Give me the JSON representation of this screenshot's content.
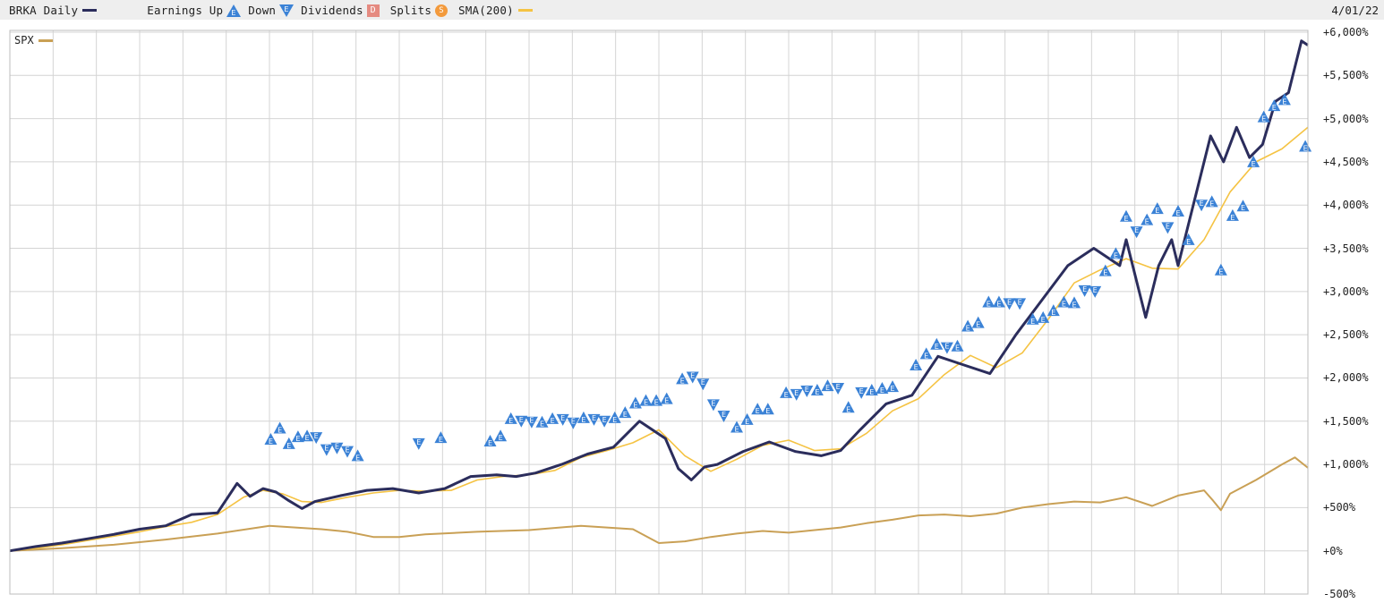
{
  "legend": {
    "symbol_label": "BRKA Daily",
    "earnings_up_label": "Earnings Up",
    "down_label": "Down",
    "dividends_label": "Dividends",
    "dividends_glyph": "D",
    "splits_label": "Splits",
    "splits_glyph": "S",
    "sma_label": "SMA(200)",
    "spx_label": "SPX"
  },
  "date_label": "4/01/22",
  "earnings_glyph": "E",
  "colors": {
    "brka": "#2b2d5c",
    "sma": "#f5c343",
    "spx": "#c9a055",
    "earnings": "#3b82d6",
    "grid": "#d4d4d4",
    "legend_bg": "#eeeeee"
  },
  "chart_data": {
    "type": "line",
    "title": "",
    "xlabel": "",
    "ylabel": "",
    "ylim": [
      -500,
      6000
    ],
    "y_ticks": [
      "+6,000%",
      "+5,500%",
      "+5,000%",
      "+4,500%",
      "+4,000%",
      "+3,500%",
      "+3,000%",
      "+2,500%",
      "+2,000%",
      "+1,500%",
      "+1,000%",
      "+500%",
      "+0%",
      "-500%"
    ],
    "x_ticks": [],
    "last_date": "4/01/22",
    "series": [
      {
        "name": "BRKA Daily",
        "x": [
          0,
          2,
          4,
          6,
          8,
          10,
          12,
          14,
          16,
          17.5,
          18.5,
          19.5,
          20.5,
          21.5,
          22.5,
          23.5,
          25.5,
          27.5,
          29.5,
          31.5,
          33.5,
          35.5,
          37.5,
          39,
          40.5,
          42.5,
          44.5,
          46.5,
          48.5,
          50.5,
          51.5,
          52.5,
          53.5,
          54.5,
          56.5,
          58.5,
          60.5,
          62.5,
          64,
          65.5,
          67.5,
          69.5,
          71.5,
          73.5,
          75.5,
          77.5,
          79.5,
          81.5,
          83.5,
          85.5,
          86,
          87.5,
          88.5,
          89.5,
          90,
          91.5,
          92.5,
          93.5,
          94.5,
          95.5,
          96.5,
          97.5,
          98.5,
          99.5,
          100
        ],
        "values": [
          0,
          50,
          90,
          140,
          190,
          250,
          290,
          420,
          440,
          780,
          630,
          720,
          680,
          580,
          490,
          570,
          640,
          700,
          720,
          670,
          720,
          860,
          880,
          860,
          900,
          1000,
          1120,
          1200,
          1500,
          1300,
          950,
          820,
          970,
          1000,
          1150,
          1260,
          1150,
          1100,
          1160,
          1400,
          1700,
          1800,
          2250,
          2150,
          2050,
          2500,
          2900,
          3300,
          3500,
          3300,
          3600,
          2700,
          3300,
          3600,
          3300,
          4200,
          4800,
          4500,
          4900,
          4550,
          4700,
          5200,
          5300,
          5900,
          5850
        ]
      },
      {
        "name": "SMA(200)",
        "x": [
          0,
          2,
          4,
          6,
          8,
          10,
          12,
          14,
          16,
          18,
          19.5,
          21,
          22.5,
          24,
          26,
          28,
          30,
          32,
          34,
          36,
          38,
          40,
          42,
          44,
          46,
          48,
          50,
          52,
          54,
          56,
          58,
          60,
          62,
          64,
          66,
          68,
          70,
          72,
          74,
          76,
          78,
          80,
          82,
          84,
          86,
          88,
          90,
          92,
          94,
          96,
          98,
          100
        ],
        "values": [
          0,
          30,
          70,
          120,
          170,
          220,
          280,
          330,
          420,
          620,
          700,
          660,
          570,
          560,
          620,
          670,
          700,
          690,
          700,
          820,
          860,
          880,
          930,
          1080,
          1160,
          1250,
          1400,
          1100,
          920,
          1060,
          1220,
          1280,
          1160,
          1180,
          1360,
          1620,
          1760,
          2040,
          2260,
          2120,
          2290,
          2680,
          3100,
          3250,
          3380,
          3270,
          3260,
          3600,
          4150,
          4500,
          4650,
          4900
        ]
      },
      {
        "name": "SPX",
        "x": [
          0,
          4,
          8,
          12,
          16,
          20,
          24,
          26,
          28,
          30,
          32,
          36,
          40,
          44,
          48,
          50,
          52,
          54,
          56,
          58,
          60,
          62,
          64,
          66,
          68,
          70,
          72,
          74,
          76,
          78,
          80,
          82,
          84,
          86,
          88,
          90,
          92,
          92.7,
          93.3,
          94,
          96,
          98,
          99,
          100
        ],
        "values": [
          0,
          30,
          70,
          130,
          200,
          290,
          250,
          220,
          160,
          160,
          190,
          220,
          240,
          290,
          250,
          90,
          110,
          160,
          200,
          230,
          210,
          240,
          270,
          320,
          360,
          410,
          420,
          400,
          430,
          500,
          540,
          570,
          560,
          620,
          520,
          640,
          700,
          580,
          470,
          660,
          820,
          1000,
          1080,
          960
        ]
      }
    ],
    "earnings_markers": [
      {
        "x": 20.1,
        "y": 1290,
        "dir": "up"
      },
      {
        "x": 20.8,
        "y": 1420,
        "dir": "up"
      },
      {
        "x": 21.5,
        "y": 1240,
        "dir": "up"
      },
      {
        "x": 22.2,
        "y": 1320,
        "dir": "up"
      },
      {
        "x": 22.9,
        "y": 1330,
        "dir": "up"
      },
      {
        "x": 23.6,
        "y": 1310,
        "dir": "down"
      },
      {
        "x": 24.4,
        "y": 1170,
        "dir": "down"
      },
      {
        "x": 25.2,
        "y": 1190,
        "dir": "down"
      },
      {
        "x": 26.0,
        "y": 1150,
        "dir": "down"
      },
      {
        "x": 26.8,
        "y": 1100,
        "dir": "up"
      },
      {
        "x": 31.5,
        "y": 1240,
        "dir": "down"
      },
      {
        "x": 33.2,
        "y": 1310,
        "dir": "up"
      },
      {
        "x": 37.0,
        "y": 1270,
        "dir": "up"
      },
      {
        "x": 37.8,
        "y": 1330,
        "dir": "up"
      },
      {
        "x": 38.6,
        "y": 1530,
        "dir": "up"
      },
      {
        "x": 39.4,
        "y": 1500,
        "dir": "down"
      },
      {
        "x": 40.2,
        "y": 1490,
        "dir": "down"
      },
      {
        "x": 41.0,
        "y": 1490,
        "dir": "up"
      },
      {
        "x": 41.8,
        "y": 1530,
        "dir": "up"
      },
      {
        "x": 42.6,
        "y": 1520,
        "dir": "down"
      },
      {
        "x": 43.4,
        "y": 1480,
        "dir": "down"
      },
      {
        "x": 44.2,
        "y": 1540,
        "dir": "up"
      },
      {
        "x": 45.0,
        "y": 1520,
        "dir": "down"
      },
      {
        "x": 45.8,
        "y": 1500,
        "dir": "down"
      },
      {
        "x": 46.6,
        "y": 1540,
        "dir": "up"
      },
      {
        "x": 47.4,
        "y": 1600,
        "dir": "up"
      },
      {
        "x": 48.2,
        "y": 1710,
        "dir": "up"
      },
      {
        "x": 49.0,
        "y": 1740,
        "dir": "up"
      },
      {
        "x": 49.8,
        "y": 1740,
        "dir": "up"
      },
      {
        "x": 50.6,
        "y": 1760,
        "dir": "up"
      },
      {
        "x": 51.8,
        "y": 1990,
        "dir": "up"
      },
      {
        "x": 52.6,
        "y": 2010,
        "dir": "down"
      },
      {
        "x": 53.4,
        "y": 1930,
        "dir": "down"
      },
      {
        "x": 54.2,
        "y": 1690,
        "dir": "down"
      },
      {
        "x": 55.0,
        "y": 1560,
        "dir": "down"
      },
      {
        "x": 56.0,
        "y": 1430,
        "dir": "up"
      },
      {
        "x": 56.8,
        "y": 1520,
        "dir": "up"
      },
      {
        "x": 57.6,
        "y": 1640,
        "dir": "up"
      },
      {
        "x": 58.4,
        "y": 1640,
        "dir": "up"
      },
      {
        "x": 59.8,
        "y": 1830,
        "dir": "up"
      },
      {
        "x": 60.6,
        "y": 1810,
        "dir": "down"
      },
      {
        "x": 61.4,
        "y": 1850,
        "dir": "down"
      },
      {
        "x": 62.2,
        "y": 1860,
        "dir": "up"
      },
      {
        "x": 63.0,
        "y": 1910,
        "dir": "up"
      },
      {
        "x": 63.8,
        "y": 1880,
        "dir": "down"
      },
      {
        "x": 64.6,
        "y": 1660,
        "dir": "up"
      },
      {
        "x": 65.6,
        "y": 1830,
        "dir": "down"
      },
      {
        "x": 66.4,
        "y": 1860,
        "dir": "up"
      },
      {
        "x": 67.2,
        "y": 1880,
        "dir": "up"
      },
      {
        "x": 68.0,
        "y": 1900,
        "dir": "up"
      },
      {
        "x": 69.8,
        "y": 2150,
        "dir": "up"
      },
      {
        "x": 70.6,
        "y": 2280,
        "dir": "up"
      },
      {
        "x": 71.4,
        "y": 2390,
        "dir": "up"
      },
      {
        "x": 72.2,
        "y": 2350,
        "dir": "down"
      },
      {
        "x": 73.0,
        "y": 2370,
        "dir": "up"
      },
      {
        "x": 73.8,
        "y": 2600,
        "dir": "up"
      },
      {
        "x": 74.6,
        "y": 2640,
        "dir": "up"
      },
      {
        "x": 75.4,
        "y": 2880,
        "dir": "up"
      },
      {
        "x": 76.2,
        "y": 2880,
        "dir": "up"
      },
      {
        "x": 77.0,
        "y": 2860,
        "dir": "down"
      },
      {
        "x": 77.8,
        "y": 2860,
        "dir": "down"
      },
      {
        "x": 78.8,
        "y": 2680,
        "dir": "up"
      },
      {
        "x": 79.6,
        "y": 2700,
        "dir": "up"
      },
      {
        "x": 80.4,
        "y": 2780,
        "dir": "up"
      },
      {
        "x": 81.2,
        "y": 2880,
        "dir": "up"
      },
      {
        "x": 82.0,
        "y": 2870,
        "dir": "up"
      },
      {
        "x": 82.8,
        "y": 3010,
        "dir": "down"
      },
      {
        "x": 83.6,
        "y": 3000,
        "dir": "down"
      },
      {
        "x": 84.4,
        "y": 3240,
        "dir": "up"
      },
      {
        "x": 85.2,
        "y": 3440,
        "dir": "up"
      },
      {
        "x": 86.0,
        "y": 3870,
        "dir": "up"
      },
      {
        "x": 86.8,
        "y": 3690,
        "dir": "down"
      },
      {
        "x": 87.6,
        "y": 3830,
        "dir": "up"
      },
      {
        "x": 88.4,
        "y": 3960,
        "dir": "up"
      },
      {
        "x": 89.2,
        "y": 3740,
        "dir": "down"
      },
      {
        "x": 90.0,
        "y": 3930,
        "dir": "up"
      },
      {
        "x": 90.8,
        "y": 3600,
        "dir": "up"
      },
      {
        "x": 91.8,
        "y": 4000,
        "dir": "down"
      },
      {
        "x": 92.6,
        "y": 4040,
        "dir": "up"
      },
      {
        "x": 93.3,
        "y": 3250,
        "dir": "up"
      },
      {
        "x": 94.2,
        "y": 3880,
        "dir": "up"
      },
      {
        "x": 95.0,
        "y": 3990,
        "dir": "up"
      },
      {
        "x": 95.8,
        "y": 4500,
        "dir": "up"
      },
      {
        "x": 96.6,
        "y": 5020,
        "dir": "up"
      },
      {
        "x": 97.4,
        "y": 5150,
        "dir": "up"
      },
      {
        "x": 98.2,
        "y": 5220,
        "dir": "up"
      },
      {
        "x": 99.8,
        "y": 4680,
        "dir": "up"
      }
    ],
    "grid": true,
    "legend_position": "top-left"
  }
}
